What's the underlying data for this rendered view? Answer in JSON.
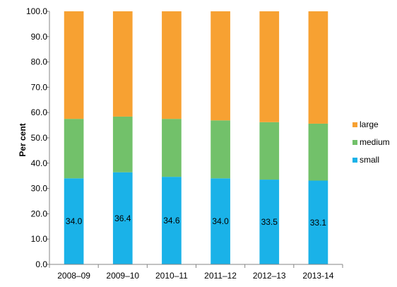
{
  "chart_data": {
    "type": "bar",
    "stacked": true,
    "categories": [
      "2008–09",
      "2009–10",
      "2010–11",
      "2011–12",
      "2012–13",
      "2013-14"
    ],
    "series": [
      {
        "name": "small",
        "color": "#1AB2E8",
        "values": [
          34.0,
          36.4,
          34.6,
          34.0,
          33.5,
          33.1
        ],
        "show_labels": true
      },
      {
        "name": "medium",
        "color": "#72C16A",
        "values": [
          23.5,
          22.0,
          22.9,
          22.9,
          22.7,
          22.5
        ],
        "show_labels": false
      },
      {
        "name": "large",
        "color": "#F7A132",
        "values": [
          42.5,
          41.6,
          42.5,
          43.1,
          43.8,
          44.4
        ],
        "show_labels": false
      }
    ],
    "data_labels": [
      "34.0",
      "36.4",
      "34.6",
      "34.0",
      "33.5",
      "33.1"
    ],
    "yticks": [
      "0.0",
      "10.0",
      "20.0",
      "30.0",
      "40.0",
      "50.0",
      "60.0",
      "70.0",
      "80.0",
      "90.0",
      "100.0"
    ],
    "ylim": [
      0,
      100
    ],
    "ylabel": "Per cent",
    "xlabel": "",
    "title": "",
    "grid": false,
    "legend": {
      "position": "right",
      "order": [
        "large",
        "medium",
        "small"
      ]
    }
  }
}
